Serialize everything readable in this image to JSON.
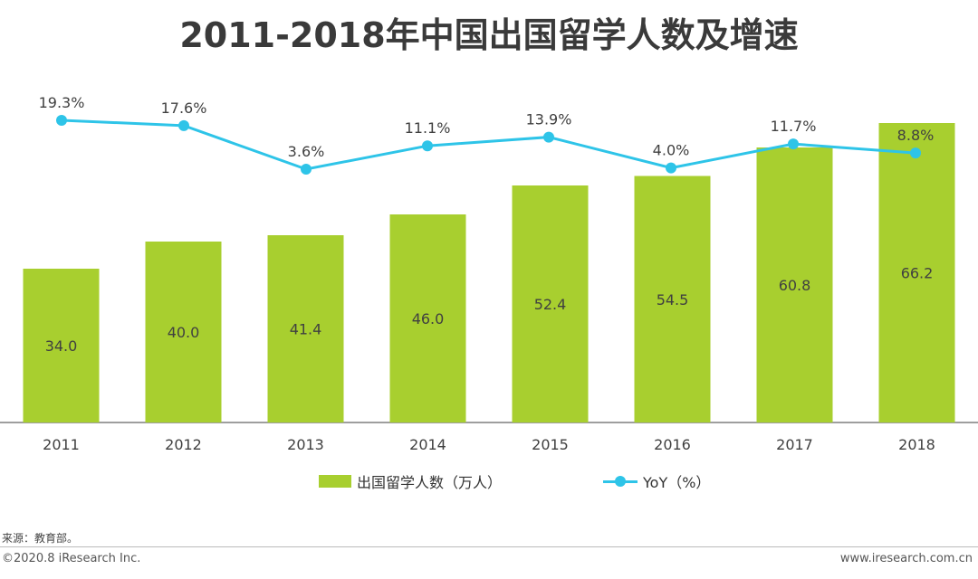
{
  "title": "2011-2018年中国出国留学人数及增速",
  "chart_data": {
    "type": "bar+line",
    "categories": [
      "2011",
      "2012",
      "2013",
      "2014",
      "2015",
      "2016",
      "2017",
      "2018"
    ],
    "series": [
      {
        "name": "出国留学人数（万人）",
        "type": "bar",
        "values": [
          34.0,
          40.0,
          41.4,
          46.0,
          52.4,
          54.5,
          60.8,
          66.2
        ],
        "labels": [
          "34.0",
          "40.0",
          "41.4",
          "46.0",
          "52.4",
          "54.5",
          "60.8",
          "66.2"
        ],
        "color": "#a8cf2f"
      },
      {
        "name": "YoY（%）",
        "type": "line",
        "values": [
          19.3,
          17.6,
          3.6,
          11.1,
          13.9,
          4.0,
          11.7,
          8.8
        ],
        "labels": [
          "19.3%",
          "17.6%",
          "3.6%",
          "11.1%",
          "13.9%",
          "4.0%",
          "11.7%",
          "8.8%"
        ],
        "color": "#2ec4e8"
      }
    ],
    "grid": false
  },
  "legend": {
    "bar_label": "出国留学人数（万人）",
    "line_label": "YoY（%）"
  },
  "source": "来源：教育部。",
  "copyright": "©2020.8 iResearch Inc.",
  "website": "www.iresearch.com.cn"
}
